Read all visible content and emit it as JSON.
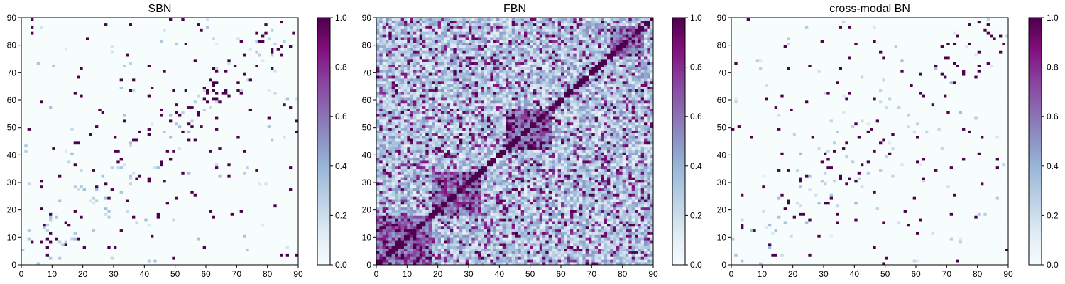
{
  "chart_data": [
    {
      "type": "heatmap",
      "title": "SBN",
      "xlabel": "",
      "ylabel": "",
      "xlim": [
        0,
        90
      ],
      "ylim": [
        0,
        90
      ],
      "xticks": [
        "0",
        "10",
        "20",
        "30",
        "40",
        "50",
        "60",
        "70",
        "80",
        "90"
      ],
      "yticks": [
        "0",
        "10",
        "20",
        "30",
        "40",
        "50",
        "60",
        "70",
        "80",
        "90"
      ],
      "grid": false,
      "matrix_size": 90,
      "pattern": "sparse symmetric binary structural network; near-zero background with scattered strong connections",
      "colorbar": {
        "colormap": "BuPu",
        "min": 0.0,
        "max": 1.0,
        "ticks": [
          "0.0",
          "0.2",
          "0.4",
          "0.6",
          "0.8",
          "1.0"
        ]
      }
    },
    {
      "type": "heatmap",
      "title": "FBN",
      "xlabel": "",
      "ylabel": "",
      "xlim": [
        0,
        90
      ],
      "ylim": [
        0,
        90
      ],
      "xticks": [
        "0",
        "10",
        "20",
        "30",
        "40",
        "50",
        "60",
        "70",
        "80",
        "90"
      ],
      "yticks": [
        "0",
        "10",
        "20",
        "30",
        "40",
        "50",
        "60",
        "70",
        "80",
        "90"
      ],
      "grid": false,
      "matrix_size": 90,
      "pattern": "dense symmetric functional network; strong diagonal with block structure",
      "colorbar": {
        "colormap": "BuPu",
        "min": 0.0,
        "max": 1.0,
        "ticks": [
          "0.0",
          "0.2",
          "0.4",
          "0.6",
          "0.8",
          "1.0"
        ]
      }
    },
    {
      "type": "heatmap",
      "title": "cross-modal BN",
      "xlabel": "",
      "ylabel": "",
      "xlim": [
        0,
        90
      ],
      "ylim": [
        0,
        90
      ],
      "xticks": [
        "0",
        "10",
        "20",
        "30",
        "40",
        "50",
        "60",
        "70",
        "80",
        "90"
      ],
      "yticks": [
        "0",
        "10",
        "20",
        "30",
        "40",
        "50",
        "60",
        "70",
        "80",
        "90"
      ],
      "grid": false,
      "matrix_size": 90,
      "pattern": "sparse symmetric binary network, similar to SBN",
      "colorbar": {
        "colormap": "BuPu",
        "min": 0.0,
        "max": 1.0,
        "ticks": [
          "0.0",
          "0.2",
          "0.4",
          "0.6",
          "0.8",
          "1.0"
        ]
      }
    }
  ],
  "colors": {
    "cmap_stops": [
      "#f7fcfd",
      "#e0ecf4",
      "#bfd3e6",
      "#9ebcda",
      "#8c96c6",
      "#8c6bb1",
      "#88419d",
      "#810f7c",
      "#4d004b"
    ]
  }
}
